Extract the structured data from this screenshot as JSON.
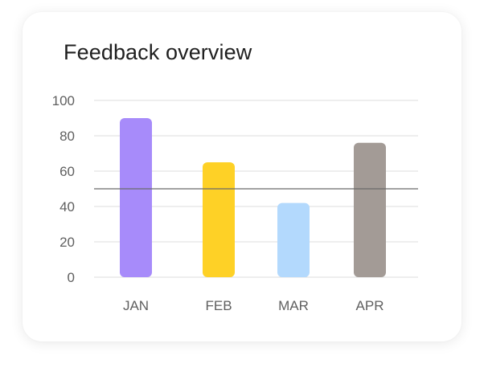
{
  "chart_data": {
    "type": "bar",
    "title": "Feedback overview",
    "categories": [
      "JAN",
      "FEB",
      "MAR",
      "APR"
    ],
    "values": [
      90,
      65,
      42,
      76
    ],
    "colors": [
      "#a78bfa",
      "#fed126",
      "#b3d9fd",
      "#a39b96"
    ],
    "ylim": [
      0,
      100
    ],
    "yticks": [
      "0",
      "20",
      "40",
      "60",
      "80",
      "100"
    ],
    "reference_line": 50,
    "grid": true
  }
}
